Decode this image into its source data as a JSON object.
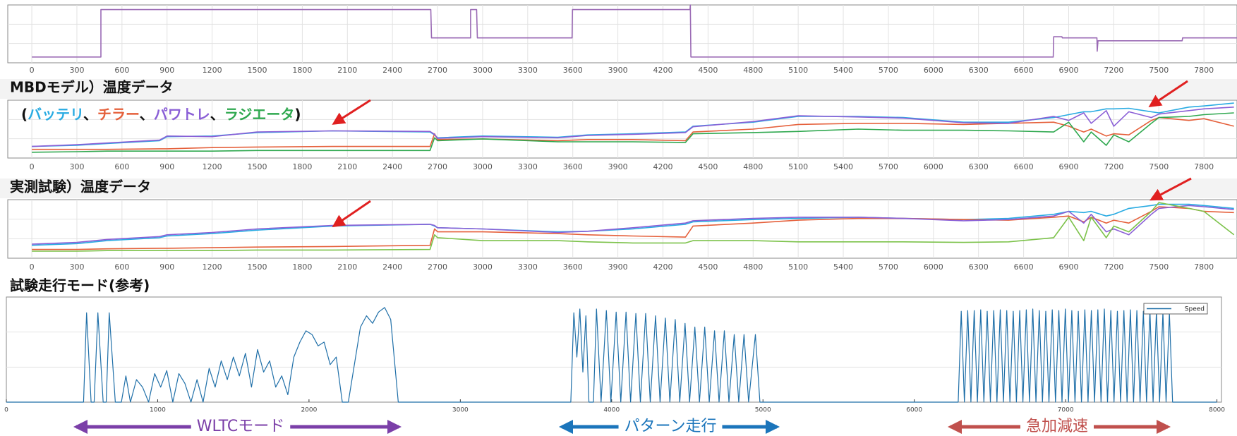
{
  "chart_data": [
    {
      "type": "line",
      "xlim": [
        -160,
        8020
      ],
      "ylim": [
        0,
        1
      ],
      "xticks": [
        0,
        300,
        600,
        900,
        1200,
        1500,
        1800,
        2100,
        2400,
        2700,
        3000,
        3300,
        3600,
        3900,
        4200,
        4500,
        4800,
        5100,
        5400,
        5700,
        6000,
        6300,
        6600,
        6900,
        7200,
        7500,
        7800
      ],
      "x": [
        0,
        460,
        460,
        2655,
        2660,
        2920,
        2920,
        2960,
        2965,
        3595,
        3598,
        4380,
        4382,
        4386,
        6797,
        6800,
        6855,
        6858,
        7088,
        7090,
        7095,
        7655,
        7658,
        8020
      ],
      "series": [
        {
          "color": "#9b6bb5",
          "values": [
            0.1,
            0.1,
            0.92,
            0.92,
            0.43,
            0.43,
            0.92,
            0.92,
            0.43,
            0.43,
            0.92,
            0.92,
            1,
            0.1,
            0.1,
            0.45,
            0.45,
            0.43,
            0.43,
            0.2,
            0.38,
            0.38,
            0.43,
            0.43
          ]
        }
      ]
    },
    {
      "type": "line",
      "title": "MBDモデル）温度データ",
      "xlim": [
        -160,
        8020
      ],
      "ylim": [
        0,
        1
      ],
      "legend_format": {
        "open": "(",
        "separator": "、",
        "close": ")"
      },
      "xticks": [
        0,
        300,
        600,
        900,
        1200,
        1500,
        1800,
        2100,
        2400,
        2700,
        3000,
        3300,
        3600,
        3900,
        4200,
        4500,
        4800,
        5100,
        5400,
        5700,
        6000,
        6300,
        6600,
        6900,
        7200,
        7500,
        7800
      ],
      "x": [
        0,
        300,
        500,
        850,
        900,
        1200,
        1500,
        2000,
        2650,
        2680,
        2700,
        3000,
        3500,
        3700,
        4000,
        4350,
        4400,
        4800,
        5100,
        5500,
        5800,
        6200,
        6500,
        6800,
        6900,
        7000,
        7050,
        7150,
        7200,
        7300,
        7450,
        7500,
        7700,
        7800,
        8000
      ],
      "series": [
        {
          "name": "バッテリ",
          "color": "#29abe2",
          "values": [
            0.2,
            0.22,
            0.25,
            0.3,
            0.37,
            0.38,
            0.44,
            0.47,
            0.45,
            0.4,
            0.35,
            0.38,
            0.36,
            0.4,
            0.42,
            0.45,
            0.55,
            0.62,
            0.72,
            0.72,
            0.7,
            0.62,
            0.62,
            0.7,
            0.75,
            0.8,
            0.8,
            0.85,
            0.85,
            0.86,
            0.8,
            0.78,
            0.88,
            0.9,
            0.95
          ]
        },
        {
          "name": "チラー",
          "color": "#e5603b",
          "values": [
            0.15,
            0.15,
            0.15,
            0.16,
            0.16,
            0.18,
            0.19,
            0.2,
            0.2,
            0.42,
            0.32,
            0.33,
            0.3,
            0.32,
            0.32,
            0.3,
            0.45,
            0.5,
            0.58,
            0.6,
            0.6,
            0.58,
            0.6,
            0.62,
            0.55,
            0.45,
            0.5,
            0.38,
            0.42,
            0.4,
            0.65,
            0.7,
            0.65,
            0.68,
            0.55
          ]
        },
        {
          "name": "パワトレ",
          "color": "#8a5fd6",
          "values": [
            0.2,
            0.23,
            0.26,
            0.31,
            0.38,
            0.37,
            0.45,
            0.47,
            0.46,
            0.41,
            0.34,
            0.37,
            0.35,
            0.39,
            0.41,
            0.44,
            0.54,
            0.63,
            0.73,
            0.71,
            0.69,
            0.61,
            0.6,
            0.72,
            0.65,
            0.78,
            0.6,
            0.82,
            0.55,
            0.8,
            0.7,
            0.76,
            0.82,
            0.85,
            0.88
          ]
        },
        {
          "name": "ラジエータ",
          "color": "#2fa84f",
          "values": [
            0.1,
            0.11,
            0.12,
            0.12,
            0.12,
            0.12,
            0.13,
            0.13,
            0.13,
            0.35,
            0.3,
            0.33,
            0.28,
            0.28,
            0.28,
            0.27,
            0.42,
            0.44,
            0.46,
            0.5,
            0.48,
            0.48,
            0.47,
            0.45,
            0.62,
            0.28,
            0.45,
            0.22,
            0.4,
            0.28,
            0.6,
            0.7,
            0.72,
            0.75,
            0.78
          ]
        }
      ]
    },
    {
      "type": "line",
      "title": "実測試験）温度データ",
      "xlim": [
        -160,
        8020
      ],
      "ylim": [
        0,
        1
      ],
      "xticks": [
        0,
        300,
        600,
        900,
        1200,
        1500,
        1800,
        2100,
        2400,
        2700,
        3000,
        3300,
        3600,
        3900,
        4200,
        4500,
        4800,
        5100,
        5400,
        5700,
        6000,
        6300,
        6600,
        6900,
        7200,
        7500,
        7800
      ],
      "x": [
        0,
        300,
        500,
        850,
        900,
        1200,
        1500,
        2000,
        2650,
        2680,
        2700,
        3000,
        3500,
        3700,
        4000,
        4350,
        4400,
        4800,
        5100,
        5500,
        5800,
        6200,
        6500,
        6800,
        6900,
        7000,
        7050,
        7150,
        7200,
        7300,
        7450,
        7500,
        7700,
        7800,
        8000
      ],
      "series": [
        {
          "color": "#29abe2",
          "values": [
            0.22,
            0.25,
            0.3,
            0.35,
            0.38,
            0.42,
            0.48,
            0.55,
            0.58,
            0.55,
            0.52,
            0.5,
            0.45,
            0.46,
            0.5,
            0.58,
            0.62,
            0.66,
            0.68,
            0.7,
            0.68,
            0.66,
            0.68,
            0.75,
            0.8,
            0.78,
            0.8,
            0.72,
            0.75,
            0.85,
            0.9,
            0.92,
            0.92,
            0.9,
            0.85
          ]
        },
        {
          "color": "#e5603b",
          "values": [
            0.15,
            0.15,
            0.16,
            0.17,
            0.17,
            0.18,
            0.19,
            0.2,
            0.22,
            0.5,
            0.45,
            0.45,
            0.42,
            0.4,
            0.38,
            0.36,
            0.55,
            0.6,
            0.65,
            0.68,
            0.68,
            0.66,
            0.65,
            0.7,
            0.72,
            0.62,
            0.7,
            0.6,
            0.65,
            0.6,
            0.8,
            0.88,
            0.85,
            0.8,
            0.78
          ]
        },
        {
          "color": "#8a5fd6",
          "values": [
            0.24,
            0.27,
            0.32,
            0.37,
            0.4,
            0.44,
            0.5,
            0.56,
            0.58,
            0.56,
            0.52,
            0.5,
            0.44,
            0.46,
            0.52,
            0.6,
            0.64,
            0.68,
            0.7,
            0.7,
            0.68,
            0.64,
            0.66,
            0.72,
            0.8,
            0.6,
            0.75,
            0.45,
            0.5,
            0.4,
            0.75,
            0.85,
            0.9,
            0.88,
            0.83
          ]
        },
        {
          "color": "#7cc24a",
          "values": [
            0.12,
            0.12,
            0.13,
            0.13,
            0.13,
            0.13,
            0.14,
            0.14,
            0.15,
            0.4,
            0.35,
            0.3,
            0.3,
            0.28,
            0.26,
            0.26,
            0.3,
            0.3,
            0.28,
            0.28,
            0.28,
            0.27,
            0.28,
            0.35,
            0.7,
            0.3,
            0.7,
            0.35,
            0.55,
            0.45,
            0.8,
            0.95,
            0.85,
            0.8,
            0.4
          ]
        }
      ]
    },
    {
      "type": "line",
      "title": "試験走行モード(参考)",
      "xlim": [
        0,
        8030
      ],
      "ylim": [
        0,
        140
      ],
      "legend": true,
      "xticks": [
        0,
        1000,
        2000,
        3000,
        4000,
        5000,
        6000,
        7000,
        8000
      ],
      "x": [
        0,
        510,
        530,
        560,
        580,
        605,
        640,
        660,
        680,
        720,
        760,
        790,
        820,
        860,
        900,
        940,
        980,
        1020,
        1060,
        1100,
        1140,
        1180,
        1220,
        1260,
        1300,
        1340,
        1380,
        1420,
        1460,
        1500,
        1540,
        1580,
        1620,
        1660,
        1700,
        1740,
        1780,
        1820,
        1860,
        1900,
        1940,
        1980,
        2020,
        2060,
        2100,
        2140,
        2180,
        2220,
        2260,
        2300,
        2340,
        2380,
        2420,
        2460,
        2500,
        2540,
        2590,
        3730,
        3750,
        3770,
        3790,
        3810,
        3830,
        3850,
        3880,
        3900,
        3930,
        3965,
        3995,
        4030,
        4060,
        4095,
        4125,
        4160,
        4190,
        4225,
        4255,
        4290,
        4320,
        4355,
        4385,
        4420,
        4450,
        4485,
        4515,
        4550,
        4580,
        4615,
        4645,
        4680,
        4710,
        4745,
        4775,
        4810,
        4840,
        4875,
        4905,
        4950,
        4980,
        6290,
        6310,
        6331,
        6353,
        6374,
        6396,
        6417,
        6439,
        6460,
        6482,
        6503,
        6525,
        6546,
        6568,
        6589,
        6611,
        6632,
        6654,
        6675,
        6697,
        6718,
        6740,
        6761,
        6783,
        6804,
        6826,
        6847,
        6869,
        6890,
        6912,
        6933,
        6955,
        6976,
        6998,
        7019,
        7041,
        7062,
        7084,
        7105,
        7127,
        7148,
        7170,
        7191,
        7213,
        7234,
        7256,
        7277,
        7299,
        7320,
        7342,
        7363,
        7385,
        7406,
        7428,
        7449,
        7471,
        7492,
        7514,
        7535,
        7557,
        7578,
        7600,
        7621,
        7643,
        7664,
        7686,
        7707,
        8000
      ],
      "series": [
        {
          "name": "Speed",
          "color": "#1f6fa8",
          "values": [
            0,
            0,
            119,
            0,
            0,
            119,
            0,
            0,
            119,
            0,
            0,
            35,
            0,
            30,
            20,
            0,
            38,
            20,
            42,
            0,
            38,
            25,
            0,
            30,
            0,
            45,
            20,
            55,
            30,
            60,
            35,
            65,
            20,
            70,
            40,
            55,
            20,
            35,
            10,
            60,
            80,
            95,
            90,
            75,
            80,
            50,
            60,
            0,
            0,
            50,
            100,
            115,
            105,
            120,
            126,
            110,
            0,
            0,
            119,
            60,
            124,
            40,
            115,
            0,
            0,
            124,
            0,
            122,
            0,
            120,
            0,
            120,
            0,
            118,
            0,
            118,
            0,
            115,
            0,
            112,
            0,
            110,
            0,
            105,
            0,
            100,
            0,
            100,
            0,
            95,
            0,
            95,
            0,
            90,
            0,
            90,
            0,
            90,
            0,
            0,
            121,
            0,
            122,
            0,
            122,
            0,
            123,
            0,
            121,
            0,
            122,
            0,
            123,
            0,
            122,
            0,
            121,
            0,
            122,
            0,
            123,
            0,
            124,
            0,
            122,
            0,
            121,
            0,
            123,
            0,
            122,
            0,
            124,
            0,
            122,
            0,
            121,
            0,
            123,
            0,
            122,
            0,
            123,
            0,
            124,
            0,
            122,
            0,
            121,
            0,
            122,
            0,
            123,
            0,
            122,
            0,
            121,
            0,
            122,
            0,
            121,
            0,
            120,
            0,
            119,
            0,
            0
          ]
        }
      ],
      "annotations": [
        {
          "text": "WLTCモード",
          "color": "#7b3fa8"
        },
        {
          "text": "パターン走行",
          "color": "#1b75bb"
        },
        {
          "text": "急加減速",
          "color": "#c0504d"
        }
      ]
    }
  ]
}
